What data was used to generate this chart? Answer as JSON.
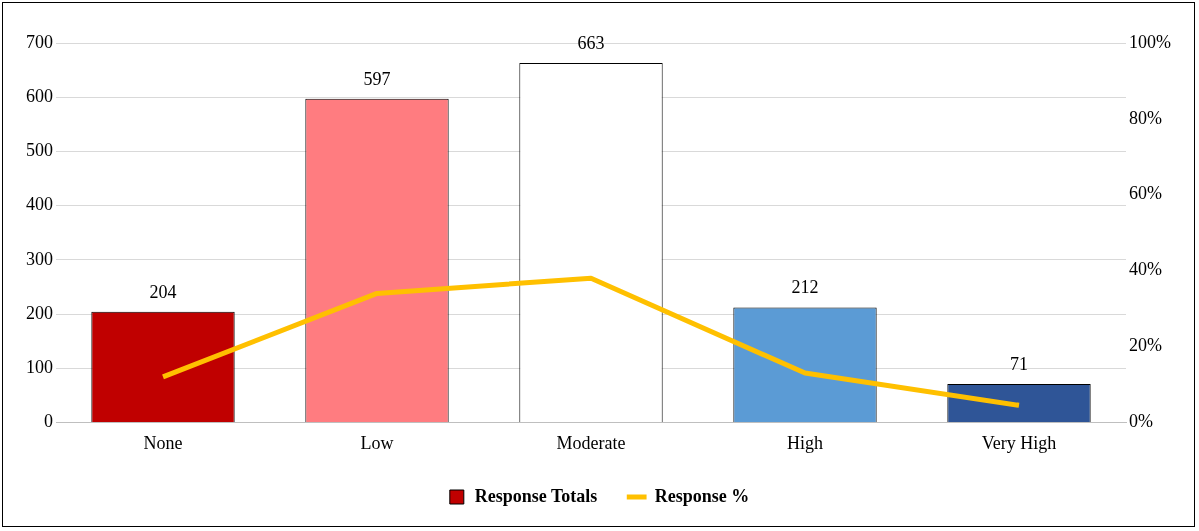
{
  "chart_data": {
    "type": "bar",
    "categories": [
      "None",
      "Low",
      "Moderate",
      "High",
      "Very High"
    ],
    "series": [
      {
        "name": "Response Totals",
        "colors": [
          "#c00000",
          "#ff7c80",
          "#ffffff",
          "#5b9bd5",
          "#2f5597"
        ],
        "values": [
          204,
          597,
          663,
          212,
          71
        ],
        "value_labels": [
          "204",
          "597",
          "663",
          "212",
          "71"
        ]
      },
      {
        "name": "Response %",
        "type": "line",
        "axis": "y2",
        "color": "#ffc000",
        "values": [
          12,
          34,
          38,
          13,
          4.5
        ]
      }
    ],
    "ylim": [
      0,
      700
    ],
    "yticks": [
      0,
      100,
      200,
      300,
      400,
      500,
      600,
      700
    ],
    "y2lim": [
      0,
      100
    ],
    "y2ticks": [
      {
        "value": 0,
        "label": "0%"
      },
      {
        "value": 20,
        "label": "20%"
      },
      {
        "value": 40,
        "label": "40%"
      },
      {
        "value": 60,
        "label": "60%"
      },
      {
        "value": 80,
        "label": "80%"
      },
      {
        "value": 100,
        "label": "100%"
      }
    ],
    "grid": "y",
    "legend": "bottom",
    "marker": "none",
    "line_style": "solid"
  }
}
